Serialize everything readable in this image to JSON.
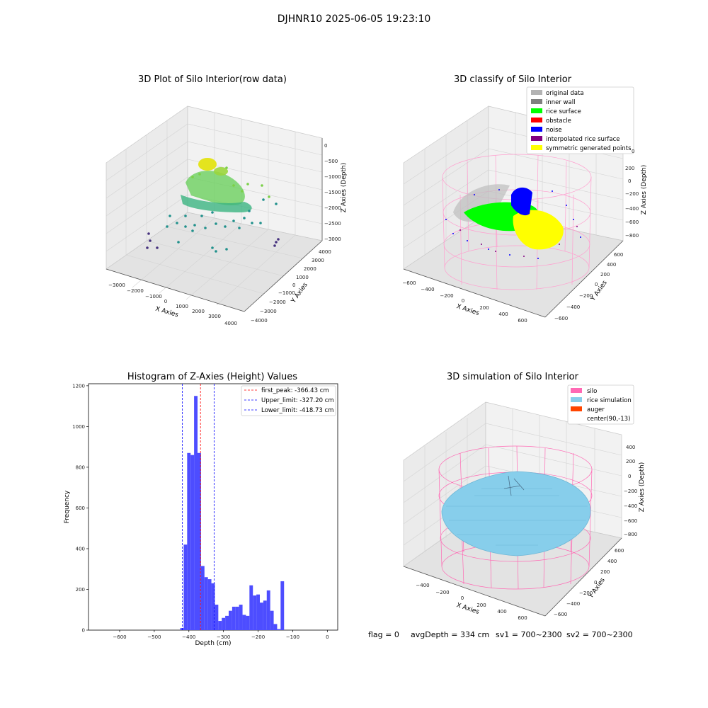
{
  "suptitle": "DJHNR10 2025-06-05 19:23:10",
  "status_line": {
    "flag": "flag = 0",
    "avg_depth": "avgDepth = 334 cm",
    "sv1": "sv1 = 700~2300",
    "sv2": "sv2 = 700~2300"
  },
  "colors": {
    "rice_surface": "#00ff00",
    "obstacle": "#ff0000",
    "noise": "#0000ff",
    "interpolated": "#800080",
    "symmetric": "#ffff00",
    "silo": "#ff69b4",
    "rice_simulation": "#87ceeb",
    "auger": "#ff4500",
    "hist_bar": "#4d4dff"
  },
  "chart_data": [
    {
      "type": "scatter",
      "title": "3D Plot of Silo Interior(row data)",
      "xlabel": "X Axies",
      "ylabel": "Y Axies",
      "zlabel": "Z Axies (Depth)",
      "x_ticks": [
        "−3000",
        "−2000",
        "−1000",
        "0",
        "1000",
        "2000",
        "3000",
        "4000"
      ],
      "y_ticks": [
        "−4000",
        "−3000",
        "−2000",
        "−1000",
        "0",
        "1000",
        "2000",
        "3000",
        "4000"
      ],
      "z_ticks": [
        "0",
        "−500",
        "−1000",
        "−1500",
        "−2000",
        "−2500",
        "−3000"
      ],
      "xlim": [
        -3500,
        4500
      ],
      "ylim": [
        -4500,
        4500
      ],
      "zlim": [
        -3200,
        200
      ],
      "colormap": "viridis (by depth)"
    },
    {
      "type": "scatter",
      "title": "3D classify of Silo Interior",
      "xlabel": "X Axies",
      "ylabel": "Y Axies",
      "zlabel": "Z Axies (Depth)",
      "x_ticks": [
        "−600",
        "−400",
        "−200",
        "0",
        "200",
        "400",
        "600"
      ],
      "y_ticks": [
        "−600",
        "−400",
        "−200",
        "0",
        "200",
        "400",
        "600"
      ],
      "z_ticks": [
        "200",
        "0",
        "−200",
        "−400",
        "−600",
        "−800"
      ],
      "z_top_tick": "0",
      "legend": [
        {
          "label": "original data",
          "color": "#b3b3b3"
        },
        {
          "label": "inner wall",
          "color": "#808080"
        },
        {
          "label": "rice surface",
          "color": "#00ff00"
        },
        {
          "label": "obstacle",
          "color": "#ff0000"
        },
        {
          "label": "noise",
          "color": "#0000ff"
        },
        {
          "label": "interpolated rice surface",
          "color": "#800080"
        },
        {
          "label": "symmetric generated points",
          "color": "#ffff00"
        }
      ],
      "legend_position": "upper-right"
    },
    {
      "type": "bar",
      "title": "Histogram of Z-Axies (Height) Values",
      "xlabel": "Depth (cm)",
      "ylabel": "Frequency",
      "xlim": [
        -690,
        30
      ],
      "ylim": [
        0,
        1210
      ],
      "x_ticks": [
        -600,
        -500,
        -400,
        -300,
        -200,
        -100,
        0
      ],
      "x_tick_labels": [
        "−600",
        "−500",
        "−400",
        "−300",
        "−200",
        "−100",
        "0"
      ],
      "y_ticks": [
        0,
        200,
        400,
        600,
        800,
        1000,
        1200
      ],
      "bin_width": 10,
      "bins": [
        {
          "left": -425,
          "count": 10
        },
        {
          "left": -415,
          "count": 420
        },
        {
          "left": -405,
          "count": 870
        },
        {
          "left": -395,
          "count": 860
        },
        {
          "left": -385,
          "count": 1150
        },
        {
          "left": -375,
          "count": 870
        },
        {
          "left": -365,
          "count": 315
        },
        {
          "left": -355,
          "count": 260
        },
        {
          "left": -345,
          "count": 250
        },
        {
          "left": -335,
          "count": 230
        },
        {
          "left": -325,
          "count": 125
        },
        {
          "left": -315,
          "count": 45
        },
        {
          "left": -305,
          "count": 60
        },
        {
          "left": -295,
          "count": 70
        },
        {
          "left": -285,
          "count": 95
        },
        {
          "left": -275,
          "count": 115
        },
        {
          "left": -265,
          "count": 115
        },
        {
          "left": -255,
          "count": 125
        },
        {
          "left": -245,
          "count": 75
        },
        {
          "left": -235,
          "count": 70
        },
        {
          "left": -225,
          "count": 220
        },
        {
          "left": -215,
          "count": 170
        },
        {
          "left": -205,
          "count": 175
        },
        {
          "left": -195,
          "count": 135
        },
        {
          "left": -185,
          "count": 145
        },
        {
          "left": -175,
          "count": 195
        },
        {
          "left": -165,
          "count": 95
        },
        {
          "left": -155,
          "count": 30
        },
        {
          "left": -145,
          "count": 5
        },
        {
          "left": -135,
          "count": 240
        }
      ],
      "lines": [
        {
          "label": "first_peak: -366.43 cm",
          "x": -366.43,
          "color": "#ff0000"
        },
        {
          "label": "Upper_limit: -327.20 cm",
          "x": -327.2,
          "color": "#0000ff"
        },
        {
          "label": "Lower_limit: -418.73 cm",
          "x": -418.73,
          "color": "#0000ff"
        }
      ],
      "legend_position": "upper-right"
    },
    {
      "type": "scatter",
      "title": "3D simulation of Silo Interior",
      "xlabel": "X Axies",
      "ylabel": "Y Axies",
      "zlabel": "Z Axies (Depth)",
      "x_ticks": [
        "−400",
        "−200",
        "0",
        "200",
        "400",
        "600"
      ],
      "y_ticks": [
        "−600",
        "−400",
        "−200",
        "0",
        "200",
        "400",
        "600"
      ],
      "z_ticks": [
        "400",
        "200",
        "0",
        "−200",
        "−400",
        "−600",
        "−800"
      ],
      "legend": [
        {
          "label": "silo",
          "color": "#ff69b4"
        },
        {
          "label": "rice simulation",
          "color": "#87ceeb"
        },
        {
          "label": "auger",
          "color": "#ff4500"
        },
        {
          "label": "center(90,-13)",
          "color": ""
        }
      ],
      "legend_position": "upper-right"
    }
  ]
}
